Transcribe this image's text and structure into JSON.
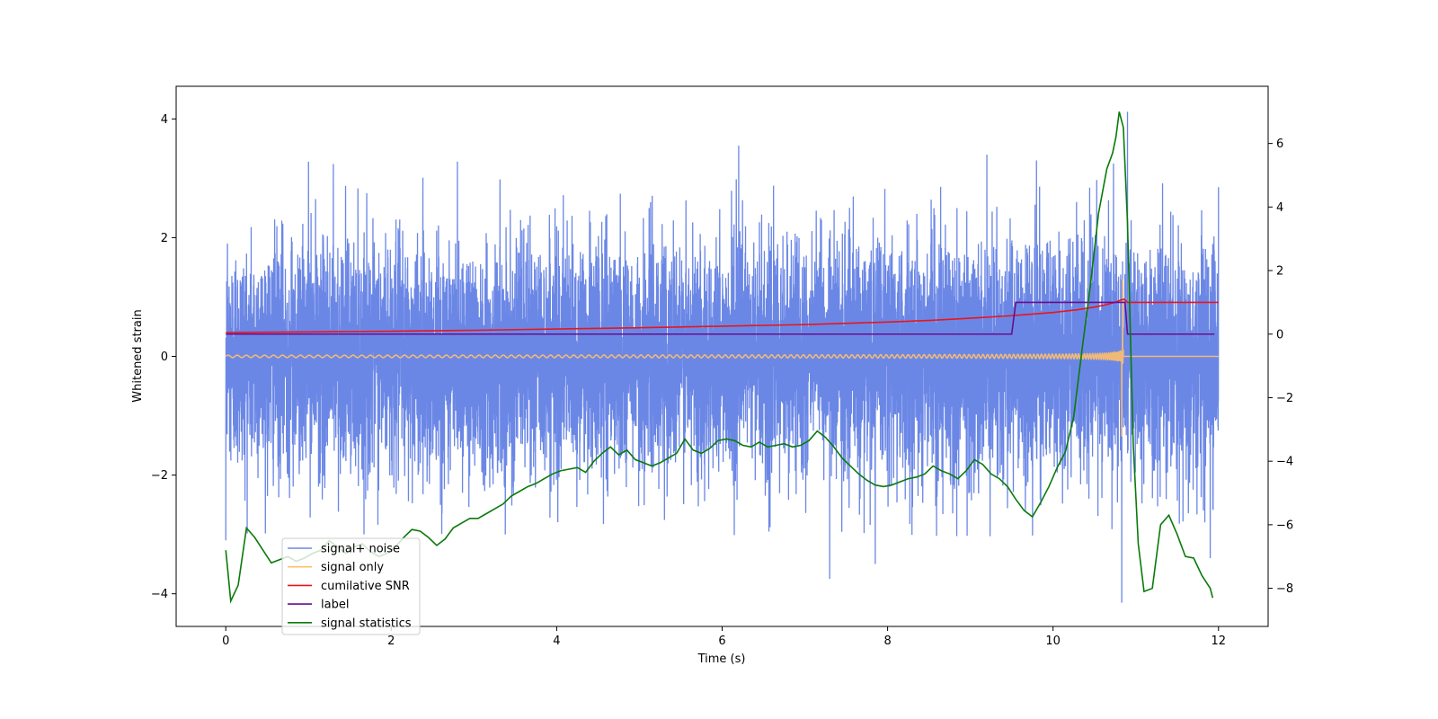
{
  "chart_data": {
    "type": "line",
    "title": "",
    "xlabel": "Time (s)",
    "ylabel": "Whitened strain",
    "y2label": "",
    "xlim": [
      -0.6,
      12.6
    ],
    "ylim": [
      -4.55,
      4.55
    ],
    "y2lim": [
      -9.2,
      7.8
    ],
    "xticks": [
      0,
      2,
      4,
      6,
      8,
      10,
      12
    ],
    "yticks": [
      -4,
      -2,
      0,
      2,
      4
    ],
    "y2ticks": [
      -8,
      -6,
      -4,
      -2,
      0,
      2,
      4,
      6
    ],
    "grid": false,
    "legend_position": "lower-left",
    "series": [
      {
        "name": "signal+ noise",
        "color": "#6b87e6",
        "axis": "left",
        "x_range": [
          0,
          12
        ],
        "noise_std": 0.95,
        "extremes": [
          [
            0.0,
            -3.1
          ],
          [
            0.02,
            1.9
          ],
          [
            1.0,
            3.28
          ],
          [
            1.3,
            3.24
          ],
          [
            2.8,
            3.28
          ],
          [
            6.2,
            3.55
          ],
          [
            7.3,
            -3.75
          ],
          [
            7.85,
            -3.5
          ],
          [
            9.2,
            3.4
          ],
          [
            9.8,
            3.3
          ],
          [
            10.73,
            3.25
          ],
          [
            10.83,
            -4.15
          ],
          [
            10.9,
            4.12
          ],
          [
            11.9,
            -3.4
          ],
          [
            12.0,
            2.85
          ]
        ]
      },
      {
        "name": "signal only",
        "color": "#ffc069",
        "axis": "left",
        "x_range": [
          0,
          12
        ],
        "chirp": {
          "end_time": 10.85,
          "peak": 1.3,
          "start_amp": 0.02,
          "start_cycles_per_s": 9.0,
          "frequency_exponent": -0.375,
          "amplitude_exponent": -0.25,
          "extremes": [
            [
              10.83,
              -1.35
            ],
            [
              10.84,
              1.3
            ]
          ]
        }
      },
      {
        "name": "cumilative SNR",
        "color": "#e8151b",
        "axis": "right",
        "x": [
          0,
          1,
          2,
          3,
          4,
          5,
          6,
          7,
          8,
          8.5,
          9,
          9.5,
          10,
          10.3,
          10.5,
          10.65,
          10.75,
          10.82,
          10.86,
          10.9,
          11.5,
          12
        ],
        "y": [
          0.05,
          0.07,
          0.09,
          0.12,
          0.16,
          0.2,
          0.25,
          0.3,
          0.38,
          0.43,
          0.5,
          0.58,
          0.68,
          0.77,
          0.85,
          0.93,
          1.0,
          1.07,
          1.1,
          1.0,
          1.0,
          1.0
        ]
      },
      {
        "name": "label",
        "color": "#6a0d8a",
        "axis": "right",
        "x": [
          0,
          9.5,
          9.55,
          10.87,
          10.9,
          11.95
        ],
        "y": [
          0,
          0,
          1,
          1,
          0,
          0
        ]
      },
      {
        "name": "signal statistics",
        "color": "#0a7a0a",
        "axis": "right",
        "x": [
          0,
          0.06,
          0.15,
          0.25,
          0.35,
          0.45,
          0.55,
          0.65,
          0.75,
          0.85,
          0.95,
          1.05,
          1.15,
          1.25,
          1.35,
          1.45,
          1.55,
          1.65,
          1.75,
          1.85,
          1.95,
          2.05,
          2.15,
          2.25,
          2.35,
          2.45,
          2.55,
          2.65,
          2.75,
          2.85,
          2.95,
          3.05,
          3.15,
          3.25,
          3.35,
          3.45,
          3.55,
          3.65,
          3.75,
          3.85,
          3.95,
          4.05,
          4.15,
          4.25,
          4.35,
          4.45,
          4.55,
          4.65,
          4.75,
          4.85,
          4.95,
          5.05,
          5.15,
          5.25,
          5.35,
          5.45,
          5.55,
          5.65,
          5.75,
          5.85,
          5.95,
          6.05,
          6.15,
          6.25,
          6.35,
          6.45,
          6.55,
          6.65,
          6.75,
          6.85,
          6.95,
          7.05,
          7.15,
          7.25,
          7.35,
          7.45,
          7.55,
          7.65,
          7.75,
          7.85,
          7.95,
          8.05,
          8.15,
          8.25,
          8.35,
          8.45,
          8.55,
          8.65,
          8.75,
          8.85,
          8.95,
          9.05,
          9.15,
          9.25,
          9.35,
          9.45,
          9.55,
          9.65,
          9.75,
          9.85,
          9.95,
          10.05,
          10.15,
          10.25,
          10.35,
          10.45,
          10.55,
          10.65,
          10.72,
          10.76,
          10.8,
          10.85,
          10.9,
          10.97,
          11.03,
          11.1,
          11.2,
          11.3,
          11.4,
          11.5,
          11.6,
          11.7,
          11.8,
          11.9,
          11.93
        ],
        "y": [
          -6.8,
          -8.4,
          -7.9,
          -6.1,
          -6.4,
          -6.8,
          -7.2,
          -7.1,
          -7.0,
          -7.15,
          -7.05,
          -6.9,
          -6.8,
          -6.5,
          -6.7,
          -6.9,
          -6.7,
          -6.6,
          -6.85,
          -7.0,
          -6.9,
          -6.7,
          -6.4,
          -6.15,
          -6.2,
          -6.4,
          -6.65,
          -6.45,
          -6.1,
          -5.95,
          -5.8,
          -5.8,
          -5.65,
          -5.5,
          -5.35,
          -5.1,
          -4.95,
          -4.8,
          -4.7,
          -4.55,
          -4.4,
          -4.3,
          -4.25,
          -4.2,
          -4.35,
          -4.0,
          -3.75,
          -3.55,
          -3.8,
          -3.65,
          -3.95,
          -4.05,
          -4.15,
          -4.05,
          -3.9,
          -3.75,
          -3.3,
          -3.65,
          -3.75,
          -3.6,
          -3.35,
          -3.3,
          -3.35,
          -3.5,
          -3.55,
          -3.4,
          -3.55,
          -3.5,
          -3.45,
          -3.55,
          -3.5,
          -3.35,
          -3.05,
          -3.25,
          -3.55,
          -3.9,
          -4.15,
          -4.4,
          -4.6,
          -4.75,
          -4.8,
          -4.75,
          -4.65,
          -4.55,
          -4.5,
          -4.4,
          -4.15,
          -4.3,
          -4.4,
          -4.55,
          -4.3,
          -3.95,
          -4.1,
          -4.4,
          -4.55,
          -4.8,
          -5.2,
          -5.55,
          -5.75,
          -5.3,
          -4.8,
          -4.2,
          -3.7,
          -2.6,
          -0.5,
          1.5,
          3.8,
          5.2,
          5.7,
          6.2,
          7.0,
          6.5,
          3.5,
          -3.5,
          -6.6,
          -8.1,
          -8.0,
          -6.0,
          -5.7,
          -6.3,
          -7.0,
          -7.05,
          -7.6,
          -8.0,
          -8.3
        ]
      }
    ]
  }
}
